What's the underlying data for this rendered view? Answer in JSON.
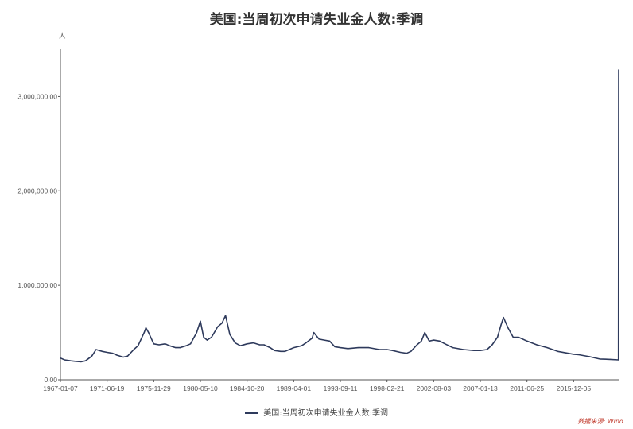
{
  "chart_data": {
    "type": "line",
    "title": "美国:当周初次申请失业金人数:季调",
    "ylabel": "人",
    "xlabel": "",
    "ylim": [
      0,
      3500000
    ],
    "yticks": [
      0,
      1000000,
      2000000,
      3000000
    ],
    "ytick_labels": [
      "0.00",
      "1,000,000.00",
      "2,000,000.00",
      "3,000,000.00"
    ],
    "xtick_labels": [
      "1967-01-07",
      "1971-06-19",
      "1975-11-29",
      "1980-05-10",
      "1984-10-20",
      "1989-04-01",
      "1993-09-11",
      "1998-02-21",
      "2002-08-03",
      "2007-01-13",
      "2011-06-25",
      "2015-12-05"
    ],
    "xlim": [
      "1967-01-07",
      "2020-03-21"
    ],
    "grid": false,
    "legend_position": "bottom",
    "series": [
      {
        "name": "美国:当周初次申请失业金人数:季调",
        "color": "#2e3a5c",
        "x": [
          "1967-01-07",
          "1967-06-01",
          "1968-01-01",
          "1968-06-01",
          "1969-01-01",
          "1969-06-01",
          "1970-01-01",
          "1970-06-01",
          "1971-01-01",
          "1971-06-19",
          "1972-01-01",
          "1972-06-01",
          "1973-01-01",
          "1973-06-01",
          "1974-01-01",
          "1974-06-01",
          "1975-01-01",
          "1975-03-01",
          "1975-06-01",
          "1975-11-29",
          "1976-06-01",
          "1977-01-01",
          "1977-06-01",
          "1978-01-01",
          "1978-06-01",
          "1979-01-01",
          "1979-06-01",
          "1980-01-01",
          "1980-05-10",
          "1980-09-01",
          "1981-01-01",
          "1981-06-01",
          "1982-01-01",
          "1982-06-01",
          "1982-10-01",
          "1983-03-01",
          "1983-09-01",
          "1984-03-01",
          "1984-10-20",
          "1985-06-01",
          "1986-01-01",
          "1986-06-01",
          "1987-01-01",
          "1987-06-01",
          "1988-01-01",
          "1988-06-01",
          "1989-04-01",
          "1990-01-01",
          "1990-06-01",
          "1991-01-01",
          "1991-03-01",
          "1991-09-01",
          "1992-03-01",
          "1992-09-01",
          "1993-03-01",
          "1993-09-11",
          "1994-06-01",
          "1995-06-01",
          "1996-06-01",
          "1997-06-01",
          "1998-02-21",
          "1998-09-01",
          "1999-06-01",
          "2000-01-01",
          "2000-06-01",
          "2001-01-01",
          "2001-06-01",
          "2001-09-29",
          "2002-03-01",
          "2002-08-03",
          "2003-03-01",
          "2003-09-01",
          "2004-06-01",
          "2005-06-01",
          "2006-06-01",
          "2007-01-13",
          "2007-09-01",
          "2008-03-01",
          "2008-09-01",
          "2009-01-01",
          "2009-03-28",
          "2009-09-01",
          "2010-03-01",
          "2010-09-01",
          "2011-06-25",
          "2012-06-01",
          "2013-06-01",
          "2014-06-01",
          "2015-06-01",
          "2015-12-05",
          "2016-06-01",
          "2017-06-01",
          "2018-06-01",
          "2019-06-01",
          "2020-03-14",
          "2020-03-21"
        ],
        "values": [
          230000,
          210000,
          200000,
          195000,
          190000,
          200000,
          250000,
          320000,
          300000,
          290000,
          280000,
          260000,
          240000,
          250000,
          320000,
          360000,
          500000,
          550000,
          500000,
          380000,
          370000,
          380000,
          360000,
          340000,
          340000,
          360000,
          380000,
          500000,
          620000,
          450000,
          420000,
          450000,
          560000,
          600000,
          680000,
          480000,
          390000,
          360000,
          380000,
          390000,
          370000,
          370000,
          340000,
          310000,
          300000,
          300000,
          340000,
          360000,
          390000,
          440000,
          500000,
          430000,
          420000,
          410000,
          350000,
          340000,
          330000,
          340000,
          340000,
          320000,
          320000,
          310000,
          290000,
          280000,
          300000,
          370000,
          410000,
          500000,
          410000,
          420000,
          410000,
          380000,
          340000,
          320000,
          310000,
          310000,
          320000,
          370000,
          450000,
          580000,
          660000,
          550000,
          450000,
          450000,
          410000,
          370000,
          340000,
          300000,
          280000,
          270000,
          265000,
          245000,
          220000,
          215000,
          210000,
          3283000
        ]
      }
    ]
  },
  "legend": {
    "label": "美国:当周初次申请失业金人数:季调"
  },
  "source": {
    "text": "数据来源: Wind"
  }
}
